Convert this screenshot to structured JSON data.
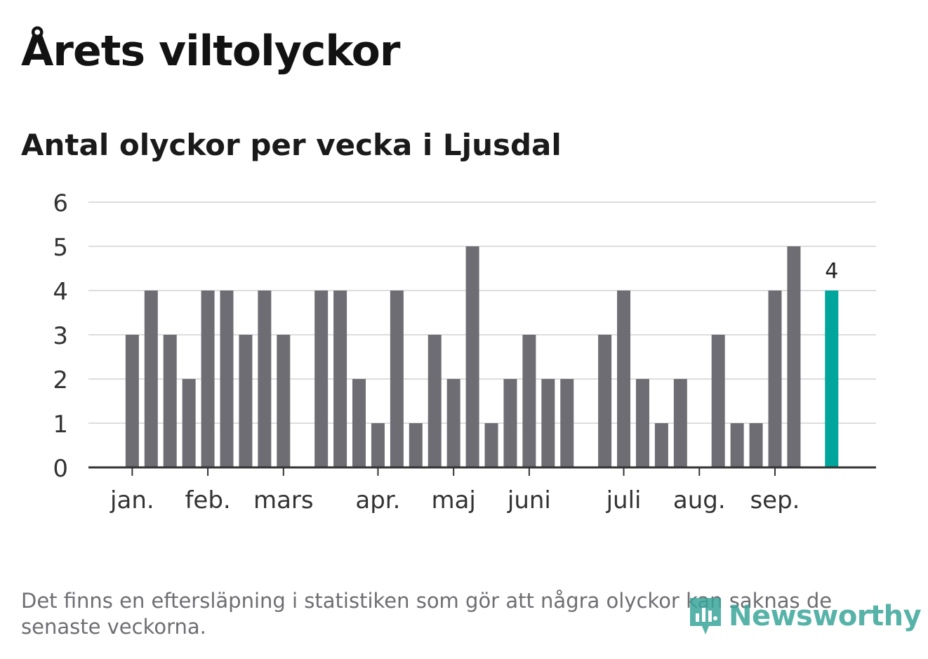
{
  "title": "Årets viltolyckor",
  "subtitle": "Antal olyckor per vecka i Ljusdal",
  "footnote": "Det finns en eftersläpning i statistiken som gör att några olyckor kan saknas de senaste veckorna.",
  "logo_text": "Newsworthy",
  "colors": {
    "bar": "#6e6d73",
    "highlight": "#00a59b",
    "grid": "#dddddd",
    "axis": "#333333",
    "text": "#333333"
  },
  "chart_data": {
    "type": "bar",
    "title": "Antal olyckor per vecka i Ljusdal",
    "xlabel": "",
    "ylabel": "",
    "ylim": [
      0,
      6
    ],
    "yticks": [
      0,
      1,
      2,
      3,
      4,
      5,
      6
    ],
    "weeks": [
      1,
      2,
      3,
      4,
      5,
      6,
      7,
      8,
      9,
      10,
      11,
      12,
      13,
      14,
      15,
      16,
      17,
      18,
      19,
      20,
      21,
      22,
      23,
      24,
      25,
      26,
      27,
      28,
      29,
      30,
      31,
      32,
      33,
      34,
      35,
      36,
      37,
      38,
      39,
      40,
      41
    ],
    "values": [
      0,
      0,
      3,
      4,
      3,
      2,
      4,
      4,
      3,
      4,
      3,
      0,
      4,
      4,
      2,
      1,
      4,
      1,
      3,
      2,
      5,
      1,
      2,
      3,
      2,
      2,
      0,
      3,
      4,
      2,
      1,
      2,
      0,
      3,
      1,
      1,
      4,
      5,
      0,
      4,
      0
    ],
    "highlight_index": 39,
    "highlight_label": "4",
    "month_labels": [
      {
        "label": "jan.",
        "position": 3.0
      },
      {
        "label": "feb.",
        "position": 7.0
      },
      {
        "label": "mars",
        "position": 11.0
      },
      {
        "label": "apr.",
        "position": 16.0
      },
      {
        "label": "maj",
        "position": 20.0
      },
      {
        "label": "juni",
        "position": 24.0
      },
      {
        "label": "juli",
        "position": 29.0
      },
      {
        "label": "aug.",
        "position": 33.0
      },
      {
        "label": "sep.",
        "position": 37.0
      }
    ]
  }
}
